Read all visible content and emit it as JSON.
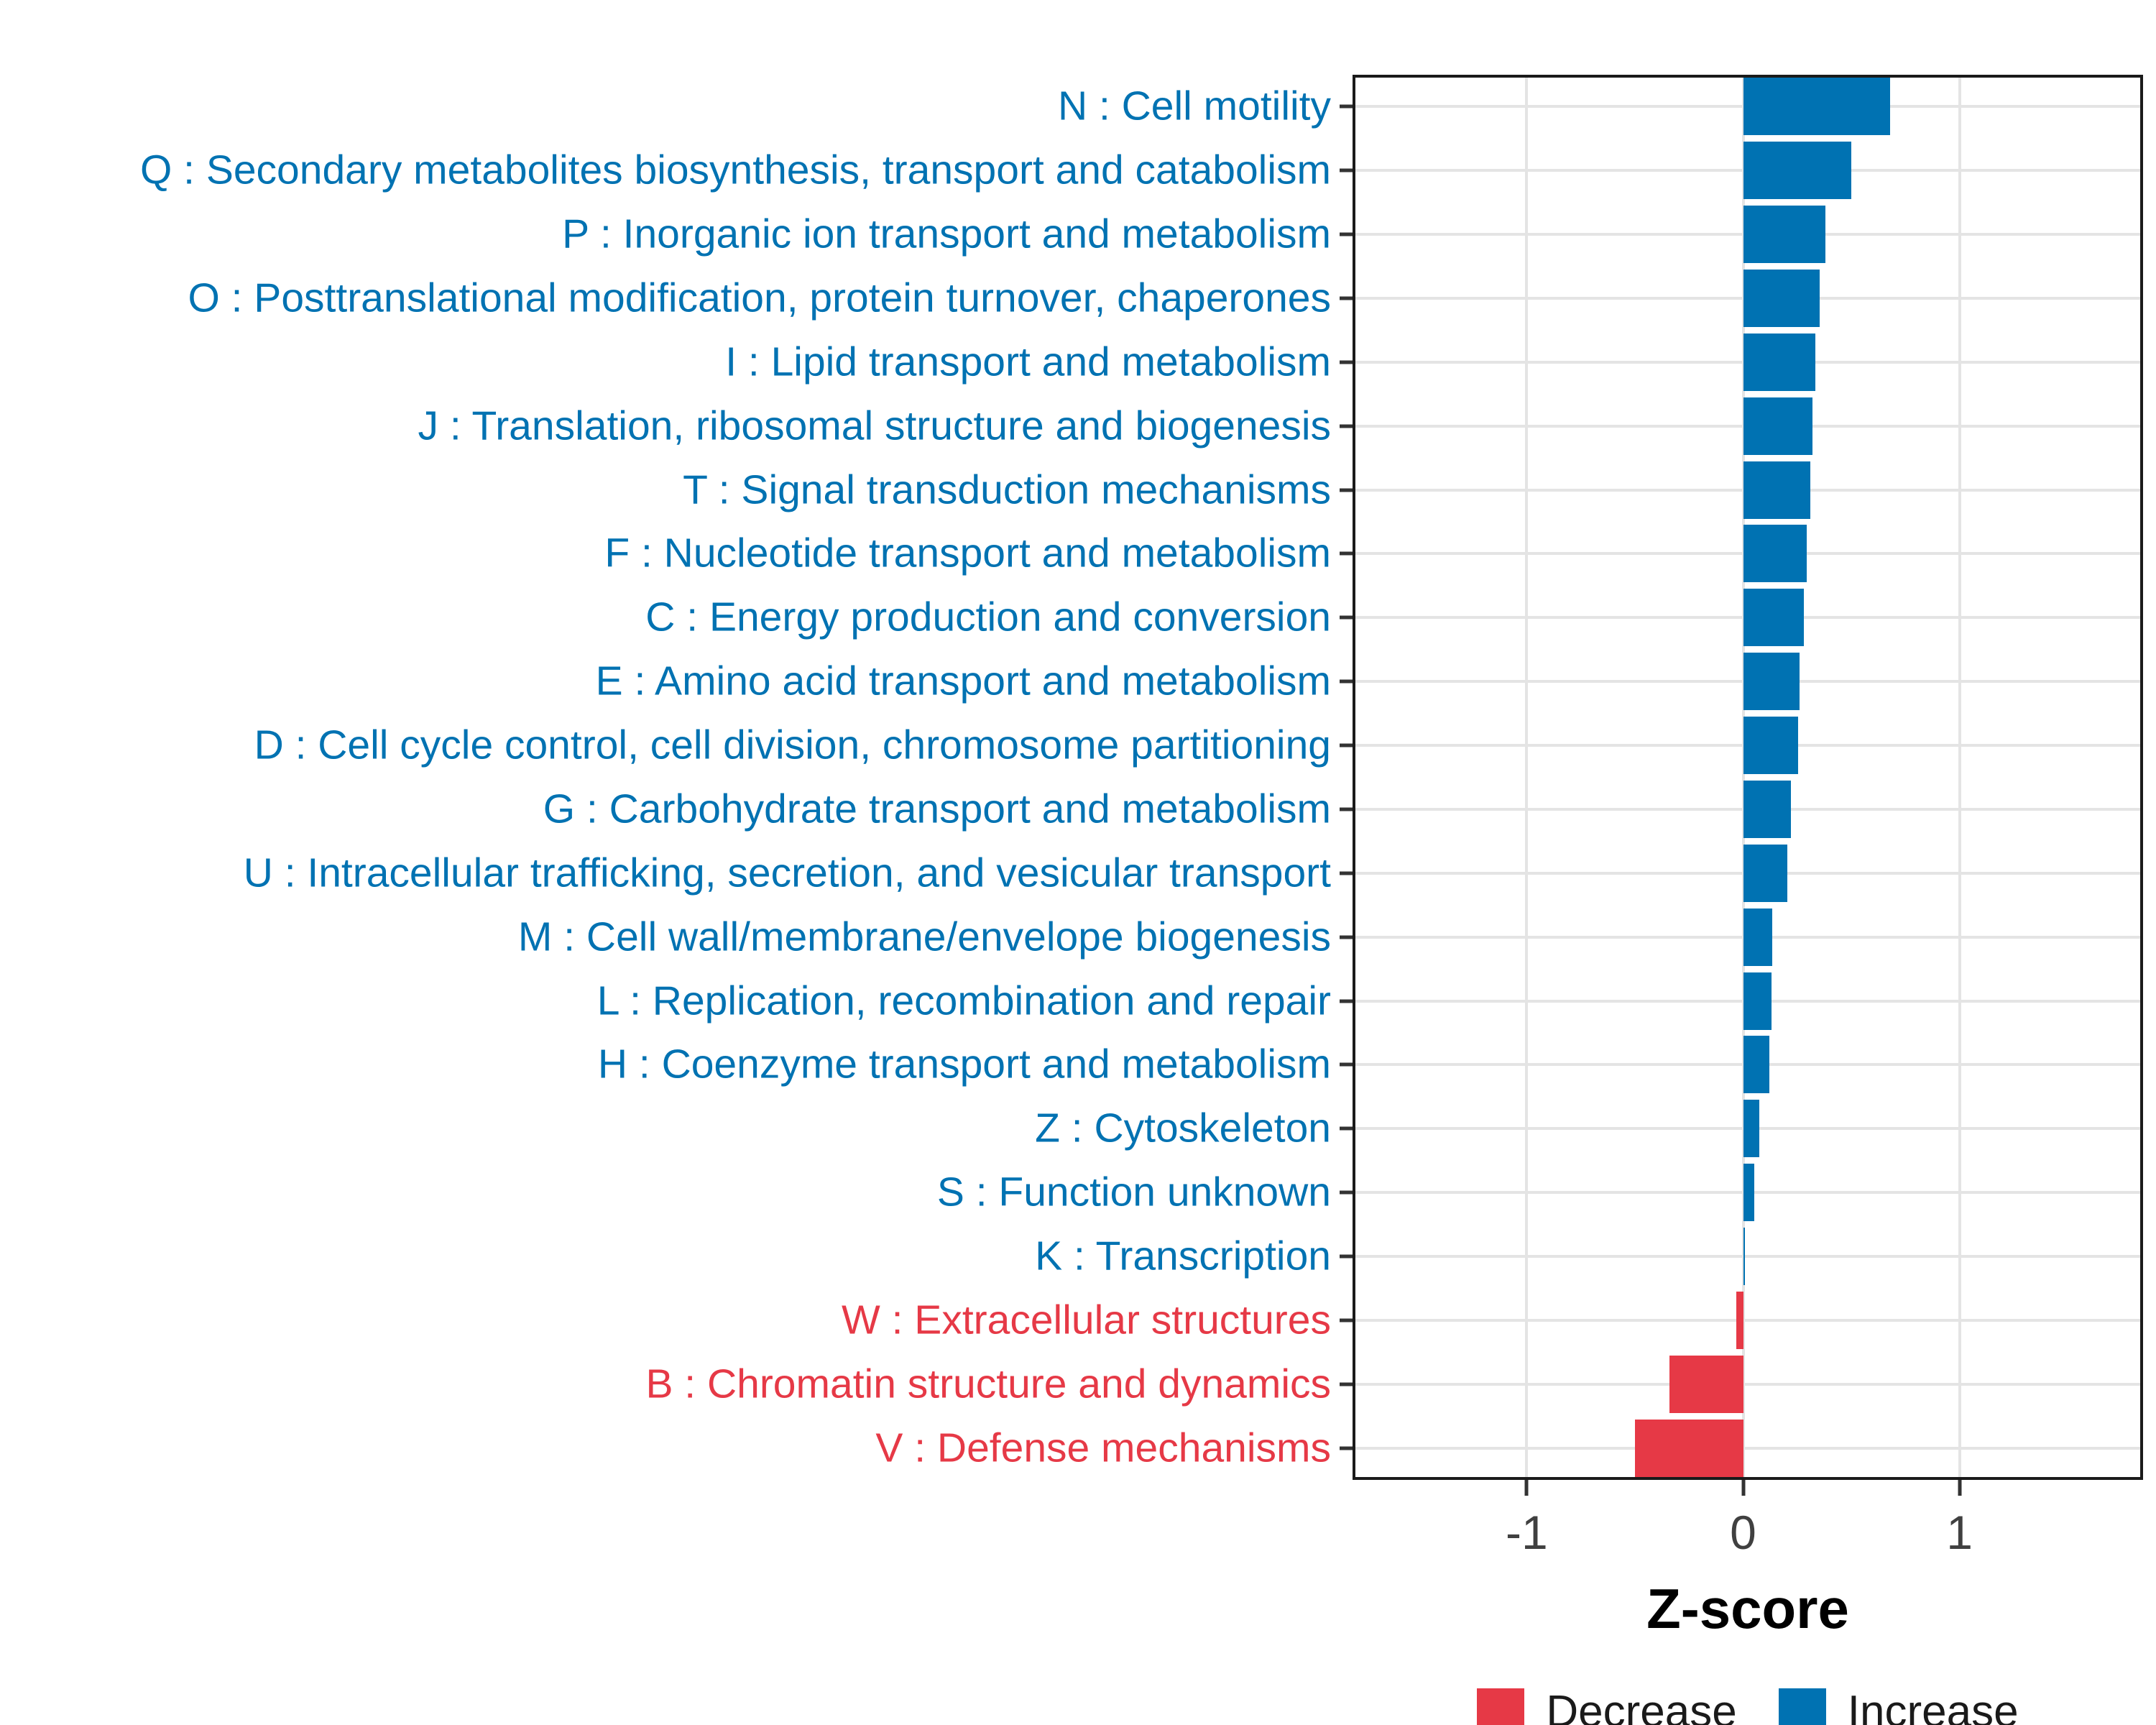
{
  "colors": {
    "increase": "#0072B2",
    "decrease": "#E63946",
    "grid": "#e4e4e4",
    "panel_border": "#1a1a1a",
    "tick": "#333333",
    "tick_label": "#404040"
  },
  "chart_data": {
    "type": "bar",
    "orientation": "horizontal",
    "title": "",
    "xlabel": "Z-score",
    "ylabel": "",
    "xlim": [
      -1.805,
      1.848
    ],
    "x_ticks": [
      -1,
      0,
      1
    ],
    "x_tick_labels": [
      "-1",
      "0",
      "1"
    ],
    "grid": true,
    "legend_position": "bottom",
    "legend": [
      {
        "label": "Decrease",
        "color": "#E63946"
      },
      {
        "label": "Increase",
        "color": "#0072B2"
      }
    ],
    "categories": [
      "N : Cell motility",
      "Q : Secondary metabolites biosynthesis, transport and catabolism",
      "P : Inorganic ion transport and metabolism",
      "O : Posttranslational modification, protein turnover, chaperones",
      "I : Lipid transport and metabolism",
      "J : Translation, ribosomal structure and biogenesis",
      "T : Signal transduction mechanisms",
      "F : Nucleotide transport and metabolism",
      "C : Energy production and conversion",
      "E : Amino acid transport and metabolism",
      "D : Cell cycle control, cell division, chromosome partitioning",
      "G : Carbohydrate transport and metabolism",
      "U : Intracellular trafficking, secretion, and vesicular transport",
      "M : Cell wall/membrane/envelope biogenesis",
      "L : Replication, recombination and repair",
      "H : Coenzyme transport and metabolism",
      "Z : Cytoskeleton",
      "S : Function unknown",
      "K : Transcription",
      "W : Extracellular structures",
      "B : Chromatin structure and dynamics",
      "V : Defense mechanisms"
    ],
    "values": [
      0.68,
      0.5,
      0.38,
      0.355,
      0.335,
      0.32,
      0.31,
      0.295,
      0.28,
      0.26,
      0.255,
      0.22,
      0.205,
      0.135,
      0.13,
      0.12,
      0.075,
      0.05,
      0.005,
      -0.033,
      -0.34,
      -0.5
    ],
    "groups": [
      "Increase",
      "Increase",
      "Increase",
      "Increase",
      "Increase",
      "Increase",
      "Increase",
      "Increase",
      "Increase",
      "Increase",
      "Increase",
      "Increase",
      "Increase",
      "Increase",
      "Increase",
      "Increase",
      "Increase",
      "Increase",
      "Increase",
      "Decrease",
      "Decrease",
      "Decrease"
    ]
  }
}
